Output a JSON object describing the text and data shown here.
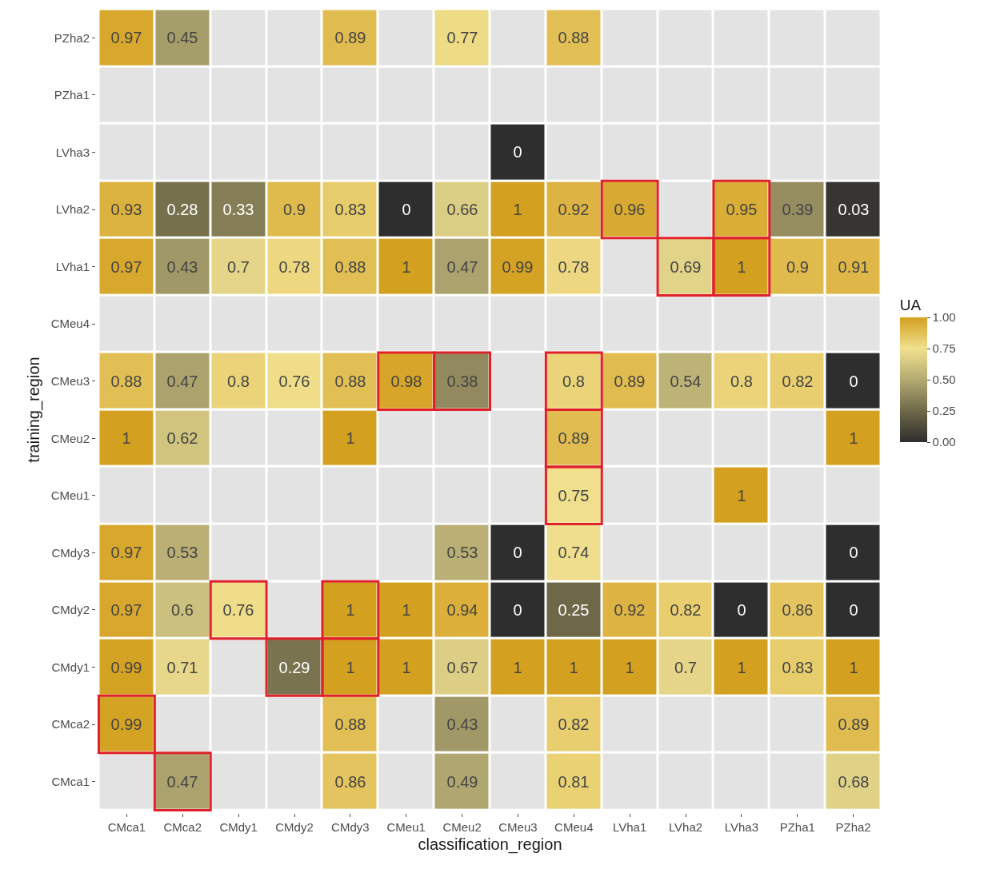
{
  "chart_data": {
    "type": "heatmap",
    "xlabel": "classification_region",
    "ylabel": "training_region",
    "clabel": "UA",
    "categories": [
      "CMca1",
      "CMca2",
      "CMdy1",
      "CMdy2",
      "CMdy3",
      "CMeu1",
      "CMeu2",
      "CMeu3",
      "CMeu4",
      "LVha1",
      "LVha2",
      "LVha3",
      "PZha1",
      "PZha2"
    ],
    "y_categories": [
      "PZha2",
      "PZha1",
      "LVha3",
      "LVha2",
      "LVha1",
      "CMeu4",
      "CMeu3",
      "CMeu2",
      "CMeu1",
      "CMdy3",
      "CMdy2",
      "CMdy1",
      "CMca2",
      "CMca1"
    ],
    "cells": [
      [
        0.97,
        0.45,
        null,
        null,
        0.89,
        null,
        0.77,
        null,
        0.88,
        null,
        null,
        null,
        null,
        null
      ],
      [
        null,
        null,
        null,
        null,
        null,
        null,
        null,
        null,
        null,
        null,
        null,
        null,
        null,
        null
      ],
      [
        null,
        null,
        null,
        null,
        null,
        null,
        null,
        0,
        null,
        null,
        null,
        null,
        null,
        null
      ],
      [
        0.93,
        0.28,
        0.33,
        0.9,
        0.83,
        0,
        0.66,
        1,
        0.92,
        0.96,
        null,
        0.95,
        0.39,
        0.03
      ],
      [
        0.97,
        0.43,
        0.7,
        0.78,
        0.88,
        1,
        0.47,
        0.99,
        0.78,
        null,
        0.69,
        1,
        0.9,
        0.91
      ],
      [
        null,
        null,
        null,
        null,
        null,
        null,
        null,
        null,
        null,
        null,
        null,
        null,
        null,
        null
      ],
      [
        0.88,
        0.47,
        0.8,
        0.76,
        0.88,
        0.98,
        0.38,
        null,
        0.8,
        0.89,
        0.54,
        0.8,
        0.82,
        0
      ],
      [
        1,
        0.62,
        null,
        null,
        1,
        null,
        null,
        null,
        0.89,
        null,
        null,
        null,
        null,
        1
      ],
      [
        null,
        null,
        null,
        null,
        null,
        null,
        null,
        null,
        0.75,
        null,
        null,
        1,
        null,
        null
      ],
      [
        0.97,
        0.53,
        null,
        null,
        null,
        null,
        0.53,
        0,
        0.74,
        null,
        null,
        null,
        null,
        0
      ],
      [
        0.97,
        0.6,
        0.76,
        null,
        1,
        1,
        0.94,
        0,
        0.25,
        0.92,
        0.82,
        0,
        0.86,
        0
      ],
      [
        0.99,
        0.71,
        null,
        0.29,
        1,
        1,
        0.67,
        1,
        1,
        1,
        0.7,
        1,
        0.83,
        1
      ],
      [
        0.99,
        null,
        null,
        null,
        0.88,
        null,
        0.43,
        null,
        0.82,
        null,
        null,
        null,
        null,
        0.89
      ],
      [
        null,
        0.47,
        null,
        null,
        0.86,
        null,
        0.49,
        null,
        0.81,
        null,
        null,
        null,
        null,
        0.68
      ]
    ],
    "clim": [
      0,
      1
    ],
    "cticks": [
      {
        "value": 0,
        "label": "0.00"
      },
      {
        "value": 0.25,
        "label": "0.25"
      },
      {
        "value": 0.5,
        "label": "0.50"
      },
      {
        "value": 0.75,
        "label": "0.75"
      },
      {
        "value": 1,
        "label": "1.00"
      }
    ],
    "data_labels": true
  }
}
